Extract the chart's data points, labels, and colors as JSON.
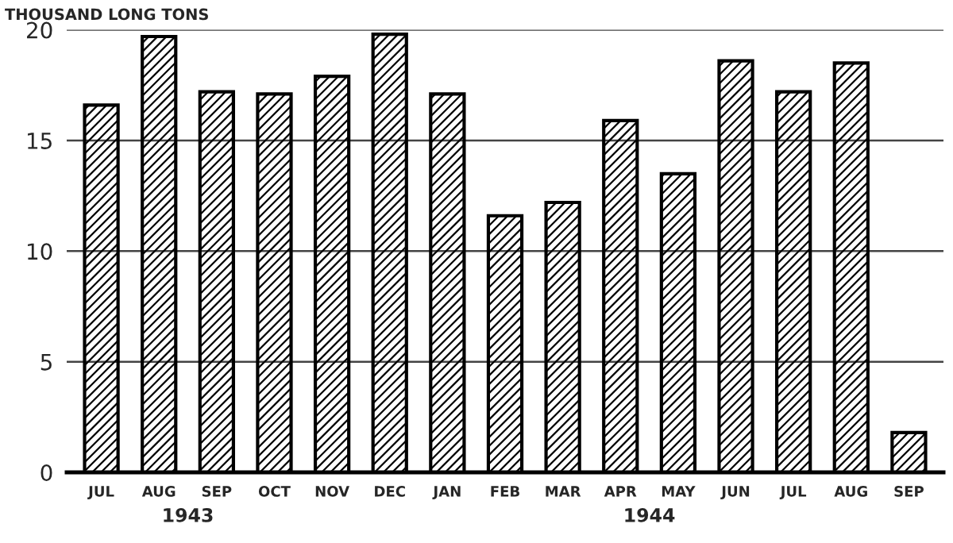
{
  "chart_data": {
    "type": "bar",
    "ylabel": "THOUSAND LONG TONS",
    "categories": [
      "JUL",
      "AUG",
      "SEP",
      "OCT",
      "NOV",
      "DEC",
      "JAN",
      "FEB",
      "MAR",
      "APR",
      "MAY",
      "JUN",
      "JUL",
      "AUG",
      "SEP"
    ],
    "values": [
      16.6,
      19.7,
      17.2,
      17.1,
      17.9,
      19.8,
      17.1,
      11.6,
      12.2,
      15.9,
      13.5,
      18.6,
      17.2,
      18.5,
      1.8
    ],
    "color": "#000000",
    "ylim": [
      0,
      20
    ],
    "yticks": [
      0,
      5,
      10,
      15,
      20
    ],
    "grid": "y",
    "annotations": [
      "1943",
      "1944"
    ]
  }
}
